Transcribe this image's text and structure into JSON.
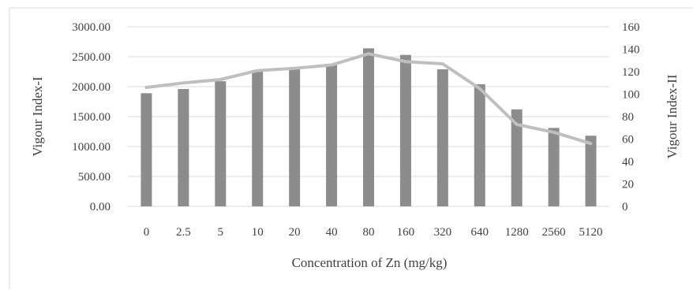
{
  "chart_data": {
    "type": "bar+line",
    "title": "",
    "xlabel": "Concentration of Zn (mg/kg)",
    "ylabel_left": "Vigour Index-I",
    "ylabel_right": "Vigour Index-II",
    "categories": [
      "0",
      "2.5",
      "5",
      "10",
      "20",
      "40",
      "80",
      "160",
      "320",
      "640",
      "1280",
      "2560",
      "5120"
    ],
    "left_axis": {
      "min": 0,
      "max": 3000,
      "step": 500,
      "tick_labels": [
        "0.00",
        "500.00",
        "1000.00",
        "1500.00",
        "2000.00",
        "2500.00",
        "3000.00"
      ]
    },
    "right_axis": {
      "min": 0,
      "max": 160,
      "step": 20,
      "tick_labels": [
        "0",
        "20",
        "40",
        "60",
        "80",
        "100",
        "120",
        "140",
        "160"
      ]
    },
    "series": [
      {
        "type": "bar",
        "axis": "left",
        "color": "#8c8c8c",
        "values": [
          1890,
          1960,
          2090,
          2250,
          2300,
          2380,
          2640,
          2530,
          2290,
          2040,
          1620,
          1310,
          1180
        ]
      },
      {
        "type": "line",
        "axis": "right",
        "color": "#bfbfbf",
        "values": [
          106,
          110,
          113,
          121,
          123,
          126,
          136,
          129,
          127,
          105,
          73,
          66,
          56
        ]
      }
    ],
    "grid": {
      "horizontal": true,
      "color": "#d9d9d9"
    },
    "legend": "none"
  }
}
